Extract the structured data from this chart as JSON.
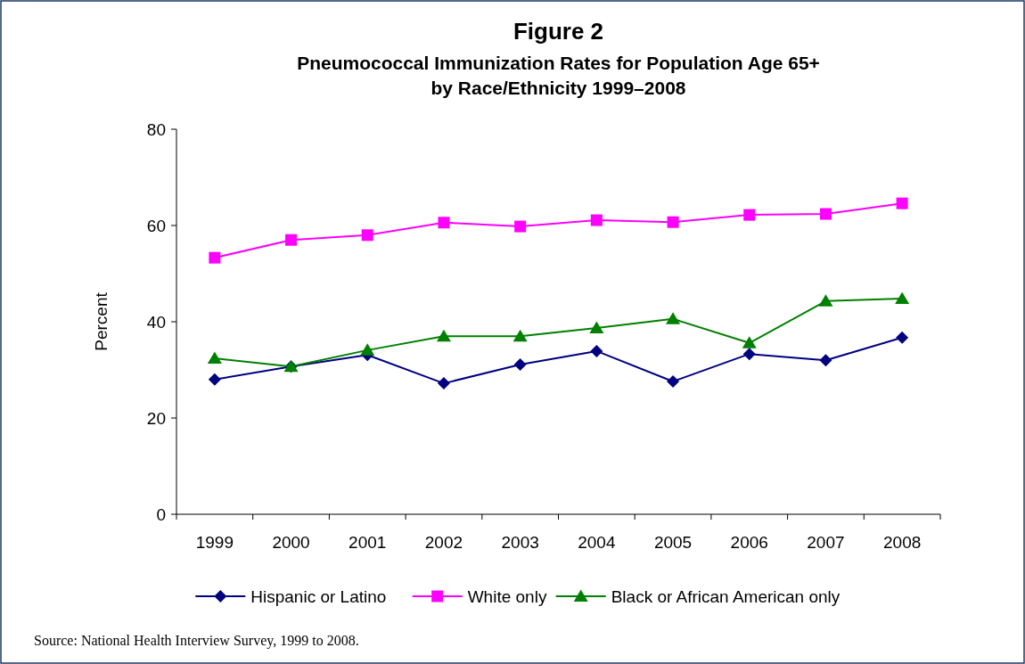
{
  "chart_data": {
    "type": "line",
    "title": "Figure 2",
    "subtitle": "Pneumococcal Immunization Rates for Population Age 65+\nby Race/Ethnicity 1999–2008",
    "ylabel": "Percent",
    "categories": [
      "1999",
      "2000",
      "2001",
      "2002",
      "2003",
      "2004",
      "2005",
      "2006",
      "2007",
      "2008"
    ],
    "series": [
      {
        "name": "Hispanic or Latino",
        "color": "#000080",
        "marker": "diamond",
        "values": [
          28,
          30.7,
          33.1,
          27.2,
          31.1,
          33.9,
          27.6,
          33.3,
          32,
          36.7
        ]
      },
      {
        "name": "White only",
        "color": "#ff00ff",
        "marker": "square",
        "values": [
          53.3,
          57,
          58,
          60.6,
          59.8,
          61.1,
          60.7,
          62.2,
          62.4,
          64.6
        ]
      },
      {
        "name": "Black or African American only",
        "color": "#008000",
        "marker": "triangle",
        "values": [
          32.4,
          30.7,
          34.1,
          37,
          37,
          38.7,
          40.6,
          35.6,
          44.3,
          44.8
        ]
      }
    ],
    "ylim": [
      0,
      80
    ],
    "yticks": [
      0,
      20,
      40,
      60,
      80
    ],
    "grid": false,
    "legend": "bottom",
    "annotations": [
      "Source: National Health Interview Survey, 1999 to 2008."
    ]
  }
}
